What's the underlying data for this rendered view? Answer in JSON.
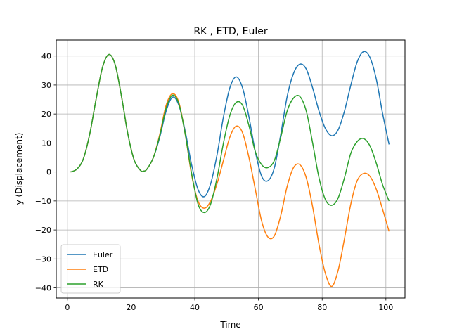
{
  "chart_data": {
    "type": "line",
    "title": "RK , ETD, Euler",
    "xlabel": "Time",
    "ylabel": "y (Displacement)",
    "xlim": [
      -3.5,
      106
    ],
    "ylim": [
      -43.5,
      45.5
    ],
    "xticks": [
      0,
      20,
      40,
      60,
      80,
      100
    ],
    "yticks": [
      -40,
      -30,
      -20,
      -10,
      0,
      10,
      20,
      30,
      40
    ],
    "grid": true,
    "legend_position": "lower-left",
    "series": [
      {
        "name": "Euler",
        "color": "#1f77b4",
        "x": [
          1,
          3,
          5,
          7,
          9,
          11,
          13,
          15,
          17,
          19,
          21,
          23,
          24,
          25,
          27,
          29,
          31,
          33,
          35,
          37,
          39,
          41,
          43,
          45,
          47,
          49,
          51,
          53,
          55,
          57,
          59,
          61,
          63,
          65,
          67,
          69,
          71,
          73,
          75,
          77,
          79,
          81,
          83,
          85,
          87,
          89,
          91,
          93,
          95,
          97,
          99,
          101
        ],
        "y": [
          0,
          1,
          4.5,
          13,
          25,
          36,
          40.5,
          37,
          26,
          13,
          4,
          0.5,
          0.3,
          1,
          5,
          12,
          21,
          25.8,
          23,
          14,
          2.5,
          -6,
          -8.5,
          -4,
          6,
          19,
          29,
          32.8,
          29,
          19,
          7,
          -1.5,
          -3,
          1.5,
          13,
          26,
          34,
          37.2,
          35.5,
          29,
          21,
          15,
          12.5,
          14.5,
          21,
          30,
          38,
          41.5,
          39.5,
          32,
          20,
          9.5
        ]
      },
      {
        "name": "ETD",
        "color": "#ff7f0e",
        "x": [
          1,
          3,
          5,
          7,
          9,
          11,
          13,
          15,
          17,
          19,
          21,
          23,
          24,
          25,
          27,
          29,
          31,
          33,
          35,
          37,
          39,
          41,
          43,
          45,
          47,
          49,
          51,
          53,
          55,
          57,
          59,
          61,
          63,
          65,
          67,
          69,
          71,
          73,
          75,
          77,
          79,
          81,
          83,
          85,
          87,
          89,
          91,
          93,
          95,
          97,
          99,
          101
        ],
        "y": [
          0,
          1,
          4.5,
          13,
          25,
          36,
          40.5,
          37,
          26,
          13,
          4,
          0.5,
          0.3,
          1,
          5,
          13,
          23,
          27,
          24,
          13,
          -1,
          -10,
          -12.5,
          -10,
          -4,
          4,
          12,
          15.8,
          13.5,
          5,
          -6,
          -17,
          -22.5,
          -22,
          -15,
          -5,
          1.5,
          2.5,
          -2,
          -12,
          -25,
          -35,
          -39.5,
          -34,
          -23,
          -11,
          -3,
          -0.5,
          -1.5,
          -6,
          -13,
          -20.5
        ]
      },
      {
        "name": "RK",
        "color": "#2ca02c",
        "x": [
          1,
          3,
          5,
          7,
          9,
          11,
          13,
          15,
          17,
          19,
          21,
          23,
          24,
          25,
          27,
          29,
          31,
          33,
          35,
          37,
          39,
          41,
          43,
          45,
          47,
          49,
          51,
          53,
          55,
          57,
          59,
          61,
          63,
          65,
          67,
          69,
          71,
          73,
          75,
          77,
          79,
          81,
          83,
          85,
          87,
          89,
          91,
          93,
          95,
          97,
          99,
          101
        ],
        "y": [
          0,
          1,
          4.5,
          13,
          25,
          36,
          40.5,
          37,
          26,
          13,
          4,
          0.5,
          0.3,
          1,
          5,
          12.5,
          22,
          26.5,
          23.5,
          13,
          -0.5,
          -11,
          -14,
          -11,
          -2,
          10,
          19.5,
          24,
          23,
          16,
          7,
          2.5,
          1.5,
          4,
          12,
          21,
          25.5,
          26,
          21,
          10,
          -2,
          -9.5,
          -11.5,
          -9,
          -2,
          6.5,
          10.5,
          11.5,
          9,
          3,
          -4.5,
          -10
        ]
      }
    ]
  }
}
